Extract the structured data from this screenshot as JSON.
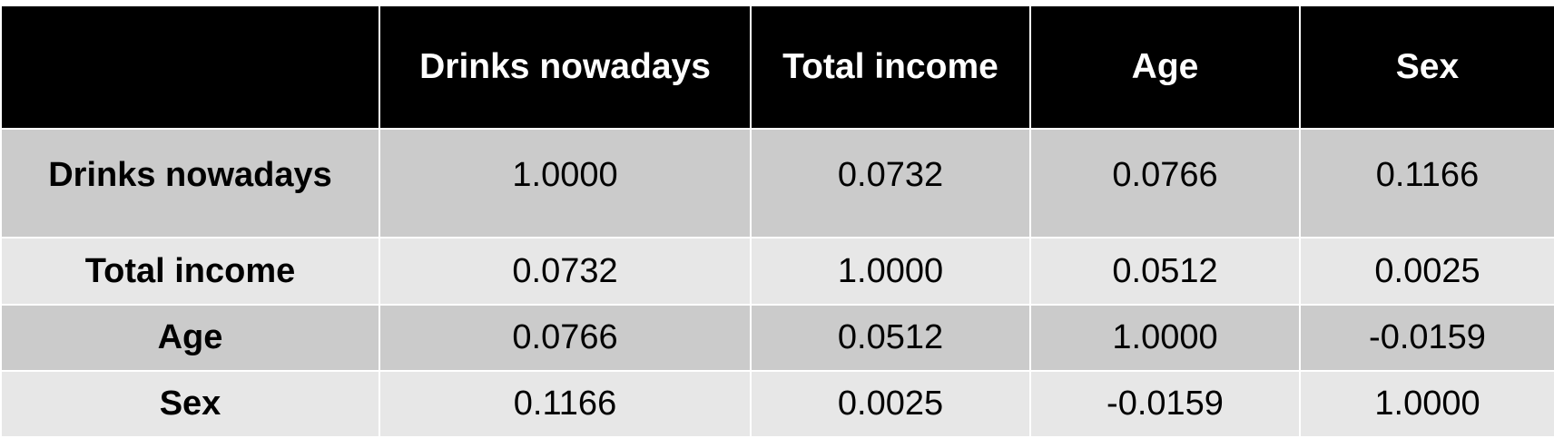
{
  "chart_data": {
    "type": "table",
    "corner": "",
    "columns": [
      "Drinks nowadays",
      "Total income",
      "Age",
      "Sex"
    ],
    "rows": [
      {
        "label": "Drinks nowadays",
        "values": [
          "1.0000",
          "0.0732",
          "0.0766",
          "0.1166"
        ]
      },
      {
        "label": "Total income",
        "values": [
          "0.0732",
          "1.0000",
          "0.0512",
          "0.0025"
        ]
      },
      {
        "label": "Age",
        "values": [
          "0.0766",
          "0.0512",
          "1.0000",
          "-0.0159"
        ]
      },
      {
        "label": "Sex",
        "values": [
          "0.1166",
          "0.0025",
          "-0.0159",
          "1.0000"
        ]
      }
    ],
    "colors": {
      "header_bg": "#000000",
      "header_text": "#ffffff",
      "row_dark": "#cbcbcb",
      "row_light": "#e7e7e7",
      "grid": "#ffffff"
    }
  }
}
